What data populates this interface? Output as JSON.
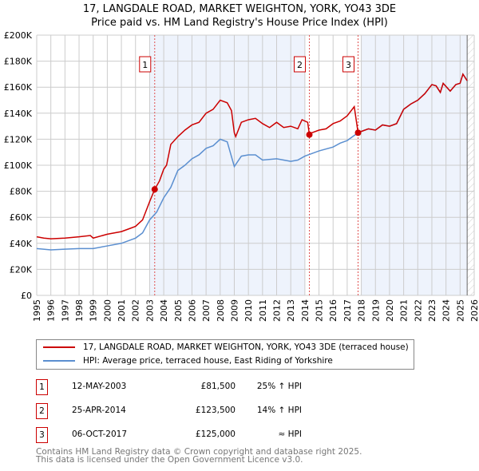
{
  "chart_data": {
    "type": "line",
    "title": "17, LANGDALE ROAD, MARKET WEIGHTON, YORK, YO43 3DE",
    "subtitle": "Price paid vs. HM Land Registry's House Price Index (HPI)",
    "xlim": [
      1995,
      2026
    ],
    "ylim": [
      0,
      200000
    ],
    "x_ticks": [
      "1995",
      "1996",
      "1997",
      "1998",
      "1999",
      "2000",
      "2001",
      "2002",
      "2003",
      "2004",
      "2005",
      "2006",
      "2007",
      "2008",
      "2009",
      "2010",
      "2011",
      "2012",
      "2013",
      "2014",
      "2015",
      "2016",
      "2017",
      "2018",
      "2019",
      "2020",
      "2021",
      "2022",
      "2023",
      "2024",
      "2025",
      "2026"
    ],
    "y_ticks": [
      {
        "v": 0,
        "label": "£0"
      },
      {
        "v": 20000,
        "label": "£20K"
      },
      {
        "v": 40000,
        "label": "£40K"
      },
      {
        "v": 60000,
        "label": "£60K"
      },
      {
        "v": 80000,
        "label": "£80K"
      },
      {
        "v": 100000,
        "label": "£100K"
      },
      {
        "v": 120000,
        "label": "£120K"
      },
      {
        "v": 140000,
        "label": "£140K"
      },
      {
        "v": 160000,
        "label": "£160K"
      },
      {
        "v": 180000,
        "label": "£180K"
      },
      {
        "v": 200000,
        "label": "£200K"
      }
    ],
    "grid": true,
    "series": [
      {
        "name": "17, LANGDALE ROAD, MARKET WEIGHTON, YORK, YO43 3DE (terraced house)",
        "color": "#cc0000",
        "points": [
          [
            1995,
            45
          ],
          [
            1995.5,
            44
          ],
          [
            1996,
            43.5
          ],
          [
            1997,
            44
          ],
          [
            1998,
            45
          ],
          [
            1998.8,
            46
          ],
          [
            1999,
            44
          ],
          [
            2000,
            47
          ],
          [
            2001,
            49
          ],
          [
            2001.5,
            51
          ],
          [
            2002,
            53
          ],
          [
            2002.5,
            58
          ],
          [
            2003,
            72
          ],
          [
            2003.36,
            81.5
          ],
          [
            2003.7,
            88
          ],
          [
            2004,
            97
          ],
          [
            2004.2,
            100
          ],
          [
            2004.5,
            116
          ],
          [
            2005,
            122
          ],
          [
            2005.5,
            127
          ],
          [
            2006,
            131
          ],
          [
            2006.5,
            133
          ],
          [
            2007,
            140
          ],
          [
            2007.5,
            143
          ],
          [
            2008,
            150
          ],
          [
            2008.5,
            148
          ],
          [
            2008.8,
            142
          ],
          [
            2009,
            125
          ],
          [
            2009.1,
            122
          ],
          [
            2009.5,
            133
          ],
          [
            2010,
            135
          ],
          [
            2010.5,
            136
          ],
          [
            2011,
            132
          ],
          [
            2011.5,
            129
          ],
          [
            2012,
            133
          ],
          [
            2012.5,
            129
          ],
          [
            2013,
            130
          ],
          [
            2013.5,
            128
          ],
          [
            2013.8,
            135
          ],
          [
            2014.2,
            133
          ],
          [
            2014.32,
            123.5
          ],
          [
            2014.5,
            125
          ],
          [
            2015,
            127
          ],
          [
            2015.5,
            128
          ],
          [
            2016,
            132
          ],
          [
            2016.5,
            134
          ],
          [
            2017,
            138
          ],
          [
            2017.5,
            145
          ],
          [
            2017.77,
            125
          ],
          [
            2018,
            126
          ],
          [
            2018.5,
            128
          ],
          [
            2019,
            127
          ],
          [
            2019.5,
            131
          ],
          [
            2020,
            130
          ],
          [
            2020.5,
            132
          ],
          [
            2021,
            143
          ],
          [
            2021.5,
            147
          ],
          [
            2022,
            150
          ],
          [
            2022.5,
            155
          ],
          [
            2023,
            162
          ],
          [
            2023.3,
            161
          ],
          [
            2023.6,
            156
          ],
          [
            2023.8,
            163
          ],
          [
            2024.3,
            157
          ],
          [
            2024.7,
            162
          ],
          [
            2025,
            163
          ],
          [
            2025.2,
            170
          ],
          [
            2025.5,
            165
          ]
        ]
      },
      {
        "name": "HPI: Average price, terraced house, East Riding of Yorkshire",
        "color": "#5b8fd0",
        "points": [
          [
            1995,
            36
          ],
          [
            1996,
            35
          ],
          [
            1997,
            35.5
          ],
          [
            1998,
            36
          ],
          [
            1999,
            36
          ],
          [
            2000,
            38
          ],
          [
            2001,
            40
          ],
          [
            2002,
            44
          ],
          [
            2002.5,
            48
          ],
          [
            2003,
            58
          ],
          [
            2003.5,
            64
          ],
          [
            2004,
            75
          ],
          [
            2004.5,
            83
          ],
          [
            2005,
            96
          ],
          [
            2005.5,
            100
          ],
          [
            2006,
            105
          ],
          [
            2006.5,
            108
          ],
          [
            2007,
            113
          ],
          [
            2007.5,
            115
          ],
          [
            2008,
            120
          ],
          [
            2008.5,
            118
          ],
          [
            2009,
            99
          ],
          [
            2009.5,
            107
          ],
          [
            2010,
            108
          ],
          [
            2010.5,
            108
          ],
          [
            2011,
            104
          ],
          [
            2012,
            105
          ],
          [
            2012.5,
            104
          ],
          [
            2013,
            103
          ],
          [
            2013.5,
            104
          ],
          [
            2014,
            107
          ],
          [
            2014.5,
            109
          ],
          [
            2015,
            111
          ],
          [
            2016,
            114
          ],
          [
            2016.5,
            117
          ],
          [
            2017,
            119
          ],
          [
            2017.77,
            125
          ],
          [
            2018,
            126
          ],
          [
            2018.5,
            128
          ],
          [
            2019,
            127
          ],
          [
            2019.5,
            131
          ],
          [
            2020,
            130
          ],
          [
            2020.5,
            132
          ],
          [
            2021,
            143
          ],
          [
            2021.5,
            147
          ],
          [
            2022,
            150
          ],
          [
            2022.5,
            155
          ],
          [
            2023,
            162
          ],
          [
            2023.3,
            161
          ],
          [
            2023.6,
            156
          ],
          [
            2023.8,
            163
          ],
          [
            2024.3,
            157
          ],
          [
            2024.7,
            162
          ],
          [
            2025,
            163
          ],
          [
            2025.2,
            170
          ],
          [
            2025.5,
            165
          ]
        ]
      }
    ],
    "value_unit": "thousands GBP",
    "shaded_ranges": [
      [
        2003,
        2014
      ],
      [
        2018,
        2025.5
      ]
    ],
    "forecast_hatch_from": 2025.5,
    "sales": [
      {
        "n": "1",
        "x": 2003.36,
        "value": 81.5,
        "date": "12-MAY-2003",
        "price": "£81,500",
        "hpi": "25% ↑ HPI"
      },
      {
        "n": "2",
        "x": 2014.32,
        "value": 123.5,
        "date": "25-APR-2014",
        "price": "£123,500",
        "hpi": "14% ↑ HPI"
      },
      {
        "n": "3",
        "x": 2017.77,
        "value": 125,
        "date": "06-OCT-2017",
        "price": "£125,000",
        "hpi": "≈ HPI"
      }
    ]
  },
  "legend": {
    "property": "17, LANGDALE ROAD, MARKET WEIGHTON, YORK, YO43 3DE (terraced house)",
    "hpi": "HPI: Average price, terraced house, East Riding of Yorkshire"
  },
  "footer": {
    "line1": "Contains HM Land Registry data © Crown copyright and database right 2025.",
    "line2": "This data is licensed under the Open Government Licence v3.0."
  }
}
